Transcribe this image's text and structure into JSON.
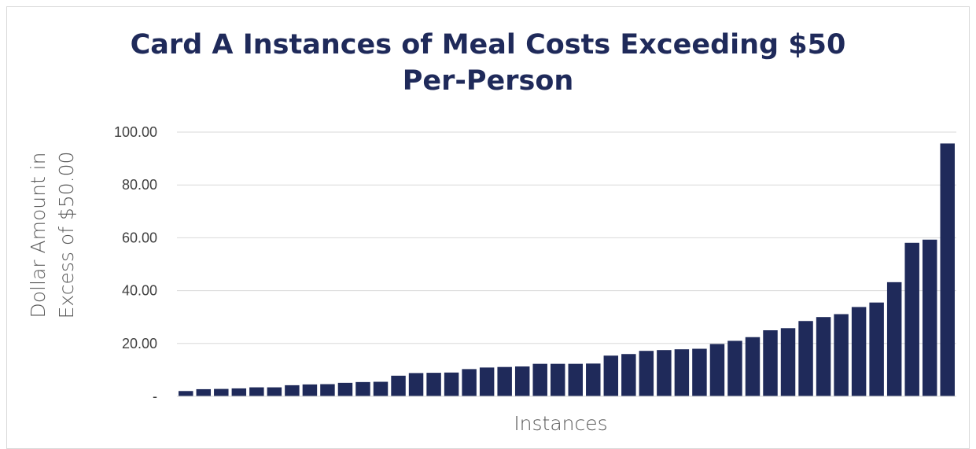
{
  "chart_data": {
    "type": "bar",
    "title_line1": "Card A Instances of Meal Costs Exceeding $50",
    "title_line2": "Per-Person",
    "xlabel": "Instances",
    "ylabel_line1": "Dollar Amount in",
    "ylabel_line2": "Excess of $50.00",
    "ylim": [
      0,
      100
    ],
    "yticks": [
      {
        "value": 0,
        "label": "-"
      },
      {
        "value": 20,
        "label": "20.00"
      },
      {
        "value": 40,
        "label": "40.00"
      },
      {
        "value": 60,
        "label": "60.00"
      },
      {
        "value": 80,
        "label": "80.00"
      },
      {
        "value": 100,
        "label": "100.00"
      }
    ],
    "grid": true,
    "bar_color": "#1f2a5a",
    "values": [
      2.0,
      2.7,
      2.8,
      3.0,
      3.4,
      3.4,
      4.2,
      4.5,
      4.6,
      5.1,
      5.4,
      5.5,
      7.8,
      8.8,
      8.9,
      9.0,
      10.3,
      10.9,
      11.1,
      11.3,
      12.3,
      12.3,
      12.3,
      12.4,
      15.4,
      16.0,
      17.2,
      17.5,
      17.8,
      18.0,
      19.8,
      21.0,
      22.4,
      25.0,
      25.8,
      28.5,
      30.0,
      31.1,
      33.8,
      35.5,
      43.2,
      58.1,
      59.3,
      95.7
    ]
  }
}
